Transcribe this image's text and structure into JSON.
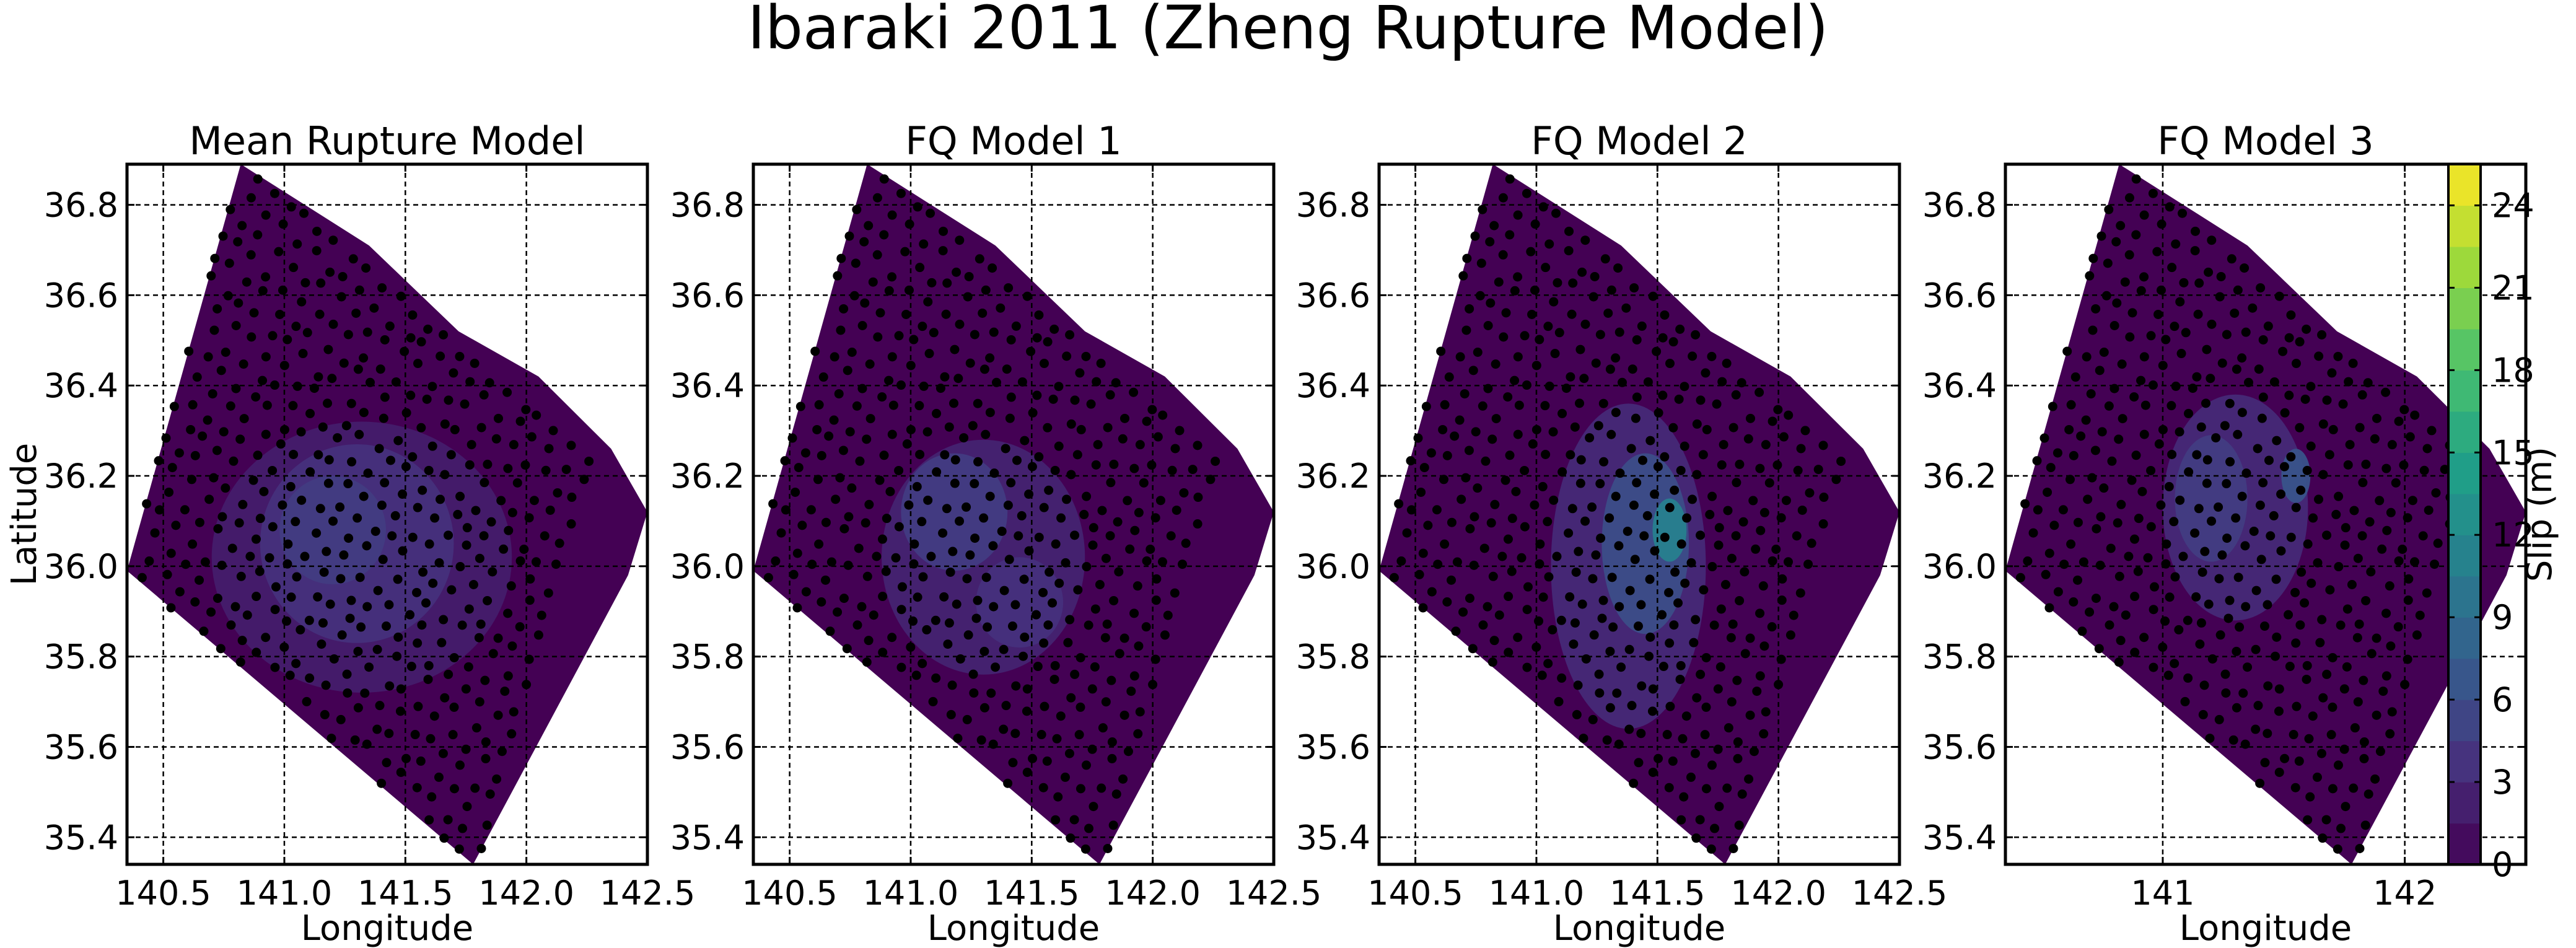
{
  "figure": {
    "title": "Ibaraki 2011 (Zheng Rupture Model)"
  },
  "colors": {
    "background": "#440154",
    "grid": "#000000",
    "points": "#000000",
    "colormap": [
      "#440154",
      "#46327e",
      "#365c8d",
      "#277f8e",
      "#1fa187",
      "#4ac16d",
      "#a0da39",
      "#fde725"
    ]
  },
  "chart_data": [
    {
      "type": "contour",
      "title": "Mean Rupture Model",
      "xlabel": "Longitude",
      "ylabel": "Latitude",
      "xlim": [
        140.35,
        142.5
      ],
      "ylim": [
        35.34,
        36.89
      ],
      "xticks": [
        140.5,
        141.0,
        141.5,
        142.0,
        142.5
      ],
      "xtick_labels": [
        "140.5",
        "141.0",
        "141.5",
        "142.0",
        "142.5"
      ],
      "yticks": [
        35.4,
        35.6,
        35.8,
        36.0,
        36.2,
        36.4,
        36.6,
        36.8
      ],
      "ytick_labels": [
        "35.4",
        "35.6",
        "35.8",
        "36.0",
        "36.2",
        "36.4",
        "36.6",
        "36.8"
      ],
      "grid": true,
      "fault_outline": [
        [
          140.82,
          36.89
        ],
        [
          141.35,
          36.71
        ],
        [
          141.72,
          36.52
        ],
        [
          142.05,
          36.42
        ],
        [
          142.35,
          36.26
        ],
        [
          142.5,
          36.12
        ],
        [
          142.42,
          35.98
        ],
        [
          141.78,
          35.34
        ],
        [
          140.35,
          35.99
        ]
      ],
      "slip_patches": [
        {
          "lon": 141.32,
          "lat": 36.02,
          "rlon": 0.62,
          "rlat": 0.3,
          "slip": 2.0
        },
        {
          "lon": 141.3,
          "lat": 36.05,
          "rlon": 0.4,
          "rlat": 0.22,
          "slip": 3.5
        },
        {
          "lon": 141.2,
          "lat": 36.08,
          "rlon": 0.22,
          "rlat": 0.12,
          "slip": 4.5
        }
      ]
    },
    {
      "type": "contour",
      "title": "FQ Model 1",
      "xlabel": "Longitude",
      "ylabel": "",
      "xlim": [
        140.35,
        142.5
      ],
      "ylim": [
        35.34,
        36.89
      ],
      "xticks": [
        140.5,
        141.0,
        141.5,
        142.0,
        142.5
      ],
      "xtick_labels": [
        "140.5",
        "141.0",
        "141.5",
        "142.0",
        "142.5"
      ],
      "yticks": [
        35.4,
        35.6,
        35.8,
        36.0,
        36.2,
        36.4,
        36.6,
        36.8
      ],
      "ytick_labels": [
        "35.4",
        "35.6",
        "35.8",
        "36.0",
        "36.2",
        "36.4",
        "36.6",
        "36.8"
      ],
      "grid": true,
      "fault_outline": [
        [
          140.82,
          36.89
        ],
        [
          141.35,
          36.71
        ],
        [
          141.72,
          36.52
        ],
        [
          142.05,
          36.42
        ],
        [
          142.35,
          36.26
        ],
        [
          142.5,
          36.12
        ],
        [
          142.42,
          35.98
        ],
        [
          141.78,
          35.34
        ],
        [
          140.35,
          35.99
        ]
      ],
      "slip_patches": [
        {
          "lon": 141.3,
          "lat": 36.02,
          "rlon": 0.42,
          "rlat": 0.26,
          "slip": 2.5
        },
        {
          "lon": 141.18,
          "lat": 36.12,
          "rlon": 0.22,
          "rlat": 0.13,
          "slip": 4.5
        },
        {
          "lon": 141.45,
          "lat": 35.92,
          "rlon": 0.18,
          "rlat": 0.1,
          "slip": 3.5
        }
      ]
    },
    {
      "type": "contour",
      "title": "FQ Model 2",
      "xlabel": "Longitude",
      "ylabel": "",
      "xlim": [
        140.35,
        142.5
      ],
      "ylim": [
        35.34,
        36.89
      ],
      "xticks": [
        140.5,
        141.0,
        141.5,
        142.0,
        142.5
      ],
      "xtick_labels": [
        "140.5",
        "141.0",
        "141.5",
        "142.0",
        "142.5"
      ],
      "yticks": [
        35.4,
        35.6,
        35.8,
        36.0,
        36.2,
        36.4,
        36.6,
        36.8
      ],
      "ytick_labels": [
        "35.4",
        "35.6",
        "35.8",
        "36.0",
        "36.2",
        "36.4",
        "36.6",
        "36.8"
      ],
      "grid": true,
      "fault_outline": [
        [
          140.82,
          36.89
        ],
        [
          141.35,
          36.71
        ],
        [
          141.72,
          36.52
        ],
        [
          142.05,
          36.42
        ],
        [
          142.35,
          36.26
        ],
        [
          142.5,
          36.12
        ],
        [
          142.42,
          35.98
        ],
        [
          141.78,
          35.34
        ],
        [
          140.35,
          35.99
        ]
      ],
      "slip_patches": [
        {
          "lon": 141.38,
          "lat": 36.0,
          "rlon": 0.32,
          "rlat": 0.36,
          "slip": 3.0
        },
        {
          "lon": 141.45,
          "lat": 36.05,
          "rlon": 0.18,
          "rlat": 0.2,
          "slip": 6.0
        },
        {
          "lon": 141.55,
          "lat": 36.08,
          "rlon": 0.07,
          "rlat": 0.07,
          "slip": 11.0
        }
      ]
    },
    {
      "type": "contour",
      "title": "FQ Model 3",
      "xlabel": "Longitude",
      "ylabel": "",
      "xlim": [
        140.35,
        142.5
      ],
      "ylim": [
        35.34,
        36.89
      ],
      "xticks": [
        141,
        142
      ],
      "xtick_labels": [
        "141",
        "142"
      ],
      "yticks": [
        35.4,
        35.6,
        35.8,
        36.0,
        36.2,
        36.4,
        36.6,
        36.8
      ],
      "ytick_labels": [
        "35.4",
        "35.6",
        "35.8",
        "36.0",
        "36.2",
        "36.4",
        "36.6",
        "36.8"
      ],
      "grid": true,
      "fault_outline": [
        [
          140.82,
          36.89
        ],
        [
          141.35,
          36.71
        ],
        [
          141.72,
          36.52
        ],
        [
          142.05,
          36.42
        ],
        [
          142.35,
          36.26
        ],
        [
          142.5,
          36.12
        ],
        [
          142.42,
          35.98
        ],
        [
          141.78,
          35.34
        ],
        [
          140.35,
          35.99
        ]
      ],
      "slip_patches": [
        {
          "lon": 141.3,
          "lat": 36.13,
          "rlon": 0.3,
          "rlat": 0.25,
          "slip": 3.0
        },
        {
          "lon": 141.2,
          "lat": 36.15,
          "rlon": 0.15,
          "rlat": 0.14,
          "slip": 4.5
        },
        {
          "lon": 141.55,
          "lat": 36.2,
          "rlon": 0.06,
          "rlat": 0.06,
          "slip": 6.5
        }
      ]
    }
  ],
  "colorbar": {
    "label": "Slip (m)",
    "min": 0,
    "max": 25.5,
    "ticks": [
      0,
      3,
      6,
      9,
      12,
      15,
      18,
      21,
      24
    ],
    "tick_labels": [
      "0",
      "3",
      "6",
      "9",
      "12",
      "15",
      "18",
      "21",
      "24"
    ],
    "levels": 17
  }
}
